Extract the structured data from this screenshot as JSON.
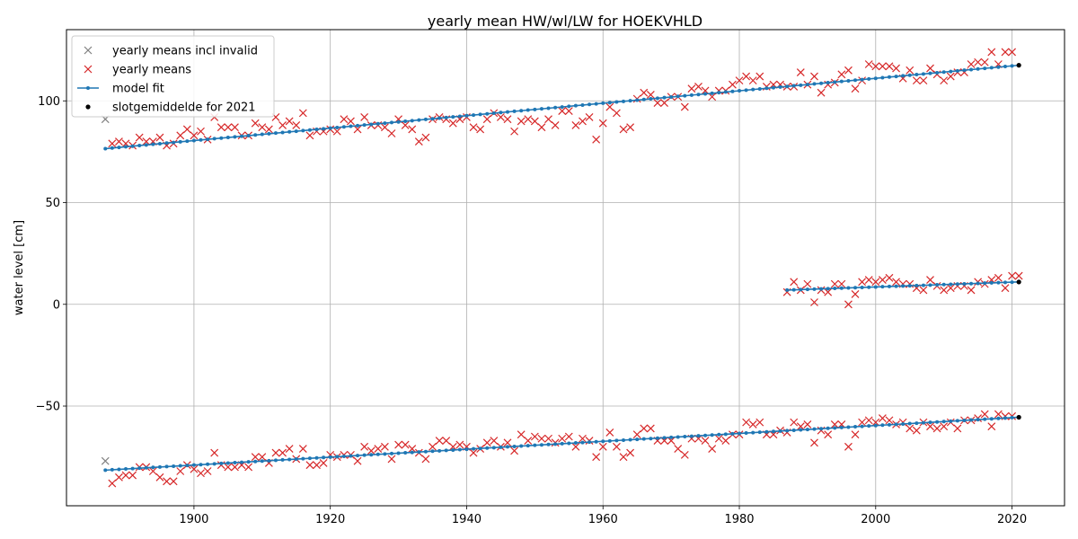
{
  "chart_data": {
    "type": "scatter",
    "title": "yearly mean HW/wl/LW for HOEKVHLD",
    "xlabel": "",
    "ylabel": "water level [cm]",
    "xlim": [
      1881.3,
      2027.7
    ],
    "ylim": [
      -99,
      135
    ],
    "xticks": [
      1900,
      1920,
      1940,
      1960,
      1980,
      2000,
      2020
    ],
    "yticks": [
      -50,
      0,
      50,
      100
    ],
    "ytick_labels": [
      "−50",
      "0",
      "50",
      "100"
    ],
    "grid": true,
    "legend_position": "upper-left",
    "colors": {
      "invalid": "#808080",
      "means": "#d62728",
      "model": "#1f77b4",
      "slotgemiddelde": "#000000",
      "grid": "#b0b0b0"
    },
    "legend": [
      {
        "label": "yearly means incl invalid",
        "marker": "x",
        "color": "#808080"
      },
      {
        "label": "yearly means",
        "marker": "x",
        "color": "#d62728"
      },
      {
        "label": "model fit",
        "marker": "line-dot",
        "color": "#1f77b4"
      },
      {
        "label": "slotgemiddelde for 2021",
        "marker": "dot",
        "color": "#000000"
      }
    ],
    "series": [
      {
        "name": "yearly means incl invalid",
        "points": [
          [
            1887,
            91
          ],
          [
            1887,
            -77
          ]
        ]
      },
      {
        "name": "yearly means",
        "groups": [
          {
            "start_year": 1888,
            "values": [
              79,
              80,
              79,
              78,
              82,
              80,
              80,
              82,
              78,
              79,
              83,
              86,
              83,
              85,
              81,
              92,
              87,
              87,
              87,
              83,
              83,
              89,
              87,
              86,
              92,
              88,
              90,
              88,
              94,
              83,
              85,
              85,
              86,
              85,
              91,
              90,
              86,
              92,
              88,
              88,
              87,
              84,
              91,
              88,
              86,
              80,
              82,
              91,
              92,
              91,
              89,
              91,
              92,
              87,
              86,
              91,
              94,
              92,
              91,
              85,
              90,
              91,
              90,
              87,
              91,
              88,
              95,
              95,
              88,
              90,
              92,
              81,
              89,
              97,
              94,
              86,
              87,
              101,
              104,
              103,
              99,
              99,
              102,
              102,
              97,
              106,
              107,
              105,
              102,
              105,
              105,
              108,
              110,
              112,
              110,
              112,
              107,
              108,
              108,
              107,
              107,
              114,
              108,
              112,
              104,
              108,
              109,
              113,
              115,
              106,
              110,
              118,
              117,
              117,
              117,
              116,
              111,
              115,
              110,
              110,
              116,
              113,
              110,
              112,
              114,
              114,
              118,
              119,
              119,
              124,
              118,
              124,
              124
            ],
            "gaps": [],
            "note": "HW"
          },
          {
            "start_year": 1987,
            "values": [
              6,
              11,
              7,
              10,
              1,
              7,
              6,
              10,
              10,
              0,
              5,
              11,
              12,
              11,
              12,
              13,
              11,
              10,
              10,
              8,
              7,
              12,
              9,
              7,
              8,
              9,
              9,
              7,
              11,
              10,
              12,
              13,
              8,
              14,
              14
            ]
          },
          {
            "start_year": 1888,
            "values": [
              -88,
              -85,
              -84,
              -84,
              -80,
              -80,
              -82,
              -85,
              -87,
              -87,
              -82,
              -79,
              -81,
              -83,
              -82,
              -73,
              -79,
              -80,
              -80,
              -79,
              -80,
              -75,
              -75,
              -78,
              -73,
              -73,
              -71,
              -76,
              -71,
              -79,
              -79,
              -78,
              -74,
              -75,
              -74,
              -74,
              -77,
              -70,
              -72,
              -71,
              -70,
              -76,
              -69,
              -69,
              -71,
              -73,
              -76,
              -70,
              -67,
              -67,
              -70,
              -69,
              -70,
              -73,
              -71,
              -68,
              -67,
              -70,
              -68,
              -72,
              -64,
              -67,
              -65,
              -66,
              -66,
              -68,
              -66,
              -65,
              -70,
              -66,
              -67,
              -75,
              -70,
              -63,
              -70,
              -75,
              -73,
              -64,
              -61,
              -61,
              -67,
              -67,
              -67,
              -71,
              -74,
              -66,
              -66,
              -67,
              -71,
              -66,
              -67,
              -64,
              -64,
              -58,
              -59,
              -58,
              -64,
              -64,
              -62,
              -63,
              -58,
              -60,
              -59,
              -68,
              -62,
              -64,
              -59,
              -59,
              -70,
              -64,
              -58,
              -57,
              -58,
              -56,
              -57,
              -59,
              -58,
              -61,
              -62,
              -58,
              -60,
              -61,
              -60,
              -58,
              -61,
              -57,
              -57,
              -56,
              -54,
              -60,
              -54,
              -55,
              -55
            ]
          }
        ]
      },
      {
        "name": "model fit",
        "lines": [
          {
            "start_year": 1887,
            "end_year": 2021,
            "start_value": 76.5,
            "end_value": 117.5
          },
          {
            "start_year": 1987,
            "end_year": 2021,
            "start_value": 7,
            "end_value": 11
          },
          {
            "start_year": 1887,
            "end_year": 2021,
            "start_value": -81.5,
            "end_value": -55.5
          }
        ]
      },
      {
        "name": "slotgemiddelde for 2021",
        "points": [
          [
            2021,
            117.5
          ],
          [
            2021,
            11
          ],
          [
            2021,
            -55.5
          ]
        ]
      }
    ]
  }
}
